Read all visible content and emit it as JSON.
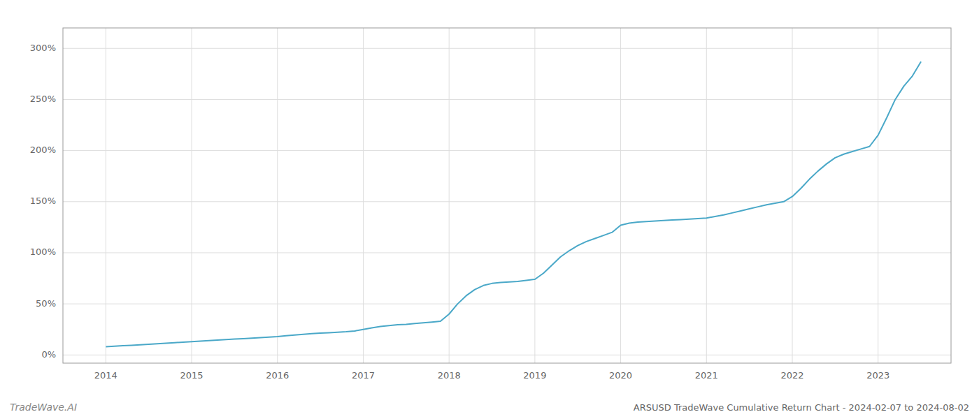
{
  "chart_data": {
    "type": "line",
    "title": "ARSUSD TradeWave Cumulative Return Chart - 2024-02-07 to 2024-08-02",
    "annotations": [
      "TradeWave.AI"
    ],
    "color": "#4aa8c8",
    "grid": true,
    "x": [
      2014.0,
      2014.1,
      2014.2,
      2014.3,
      2014.4,
      2014.5,
      2014.6,
      2014.7,
      2014.8,
      2014.9,
      2015.0,
      2015.1,
      2015.2,
      2015.3,
      2015.4,
      2015.5,
      2015.6,
      2015.7,
      2015.8,
      2015.9,
      2016.0,
      2016.1,
      2016.2,
      2016.3,
      2016.4,
      2016.5,
      2016.6,
      2016.7,
      2016.8,
      2016.9,
      2017.0,
      2017.1,
      2017.2,
      2017.3,
      2017.4,
      2017.5,
      2017.6,
      2017.7,
      2017.8,
      2017.9,
      2018.0,
      2018.1,
      2018.2,
      2018.3,
      2018.4,
      2018.5,
      2018.6,
      2018.7,
      2018.8,
      2018.9,
      2019.0,
      2019.1,
      2019.2,
      2019.3,
      2019.4,
      2019.5,
      2019.6,
      2019.7,
      2019.8,
      2019.9,
      2020.0,
      2020.1,
      2020.2,
      2020.3,
      2020.4,
      2020.5,
      2020.6,
      2020.7,
      2020.8,
      2020.9,
      2021.0,
      2021.1,
      2021.2,
      2021.3,
      2021.4,
      2021.5,
      2021.6,
      2021.7,
      2021.8,
      2021.9,
      2022.0,
      2022.1,
      2022.2,
      2022.3,
      2022.4,
      2022.5,
      2022.6,
      2022.7,
      2022.8,
      2022.9,
      2023.0,
      2023.1,
      2023.2,
      2023.3,
      2023.4,
      2023.5
    ],
    "values": [
      8.0,
      8.5,
      9.0,
      9.5,
      10.0,
      10.5,
      11.0,
      11.5,
      12.0,
      12.5,
      13.0,
      13.5,
      14.0,
      14.5,
      15.0,
      15.5,
      16.0,
      16.5,
      17.0,
      17.5,
      18.0,
      18.8,
      19.5,
      20.2,
      20.8,
      21.3,
      21.8,
      22.3,
      22.8,
      23.5,
      25.0,
      26.5,
      27.8,
      28.8,
      29.5,
      30.0,
      30.8,
      31.5,
      32.2,
      33.0,
      40.0,
      50.0,
      58.0,
      64.0,
      68.0,
      70.0,
      71.0,
      71.5,
      72.0,
      73.0,
      74.0,
      80.0,
      88.0,
      96.0,
      102.0,
      107.0,
      111.0,
      114.0,
      117.0,
      120.0,
      127.0,
      129.0,
      130.0,
      130.5,
      131.0,
      131.5,
      132.0,
      132.5,
      133.0,
      133.5,
      134.0,
      135.5,
      137.0,
      139.0,
      141.0,
      143.0,
      145.0,
      147.0,
      148.5,
      150.0,
      155.0,
      163.0,
      172.0,
      180.0,
      187.0,
      193.0,
      196.5,
      199.0,
      201.5,
      204.0,
      215.0,
      232.0,
      250.0,
      263.0,
      273.0,
      287.0
    ],
    "xlim": [
      2013.5,
      2023.85
    ],
    "xticks": [
      2014,
      2015,
      2016,
      2017,
      2018,
      2019,
      2020,
      2021,
      2022,
      2023
    ],
    "ylim": [
      -8,
      320
    ],
    "yticks": [
      {
        "value": 0,
        "label": "0%"
      },
      {
        "value": 50,
        "label": "50%"
      },
      {
        "value": 100,
        "label": "100%"
      },
      {
        "value": 150,
        "label": "150%"
      },
      {
        "value": 200,
        "label": "200%"
      },
      {
        "value": 250,
        "label": "250%"
      },
      {
        "value": 300,
        "label": "300%"
      }
    ]
  }
}
